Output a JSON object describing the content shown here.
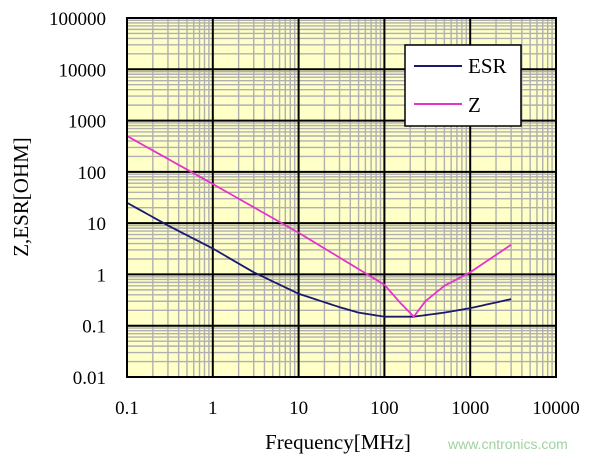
{
  "chart_data": {
    "type": "line",
    "xlabel": "Frequency[MHz]",
    "ylabel": "Z,ESR[OHM]",
    "xscale": "log",
    "yscale": "log",
    "xlim": [
      0.1,
      10000
    ],
    "ylim": [
      0.01,
      100000
    ],
    "x_ticks": [
      "0.1",
      "1",
      "10",
      "100",
      "1000",
      "10000"
    ],
    "y_ticks": [
      "0.01",
      "0.1",
      "1",
      "10",
      "100",
      "1000",
      "10000",
      "100000"
    ],
    "grid": true,
    "legend_position": "top-right",
    "background_color": "#ffffc8",
    "series": [
      {
        "name": "ESR",
        "color": "#1a1a6e",
        "x": [
          0.1,
          0.3,
          1,
          3,
          10,
          30,
          50,
          100,
          220,
          500,
          1000,
          3000
        ],
        "y": [
          25,
          9,
          3.2,
          1.1,
          0.42,
          0.23,
          0.18,
          0.15,
          0.15,
          0.18,
          0.22,
          0.33
        ]
      },
      {
        "name": "Z",
        "color": "#e633cc",
        "x": [
          0.1,
          1,
          10,
          100,
          150,
          220,
          300,
          500,
          1000,
          3000
        ],
        "y": [
          500,
          58,
          6.5,
          0.63,
          0.29,
          0.15,
          0.3,
          0.6,
          1.1,
          3.8
        ]
      }
    ]
  },
  "watermark": "www.cntronics.com"
}
